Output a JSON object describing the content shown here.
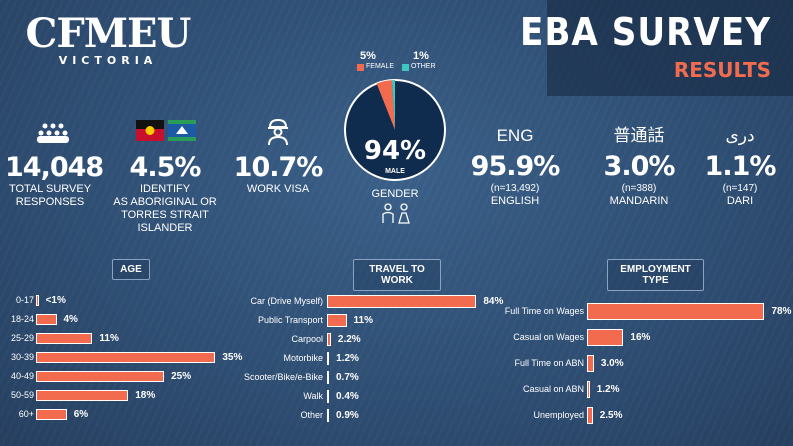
{
  "logo": {
    "main": "CFMEU",
    "sub": "VICTORIA"
  },
  "title": {
    "main": "EBA SURVEY",
    "sub": "RESULTS"
  },
  "colors": {
    "accent": "#f26b4f",
    "teal": "#3ec6c0",
    "navy": "#0f2b4d"
  },
  "stats": [
    {
      "value": "14,048",
      "label_line1": "TOTAL SURVEY",
      "label_line2": "RESPONSES",
      "icon": "people-crowd-icon"
    },
    {
      "value": "4.5%",
      "label_line1": "IDENTIFY",
      "label_line2": "AS ABORIGINAL OR",
      "label_line3": "TORRES STRAIT ISLANDER",
      "icon": "flags-icon"
    },
    {
      "value": "10.7%",
      "label_line1": "WORK VISA",
      "icon": "worker-icon"
    }
  ],
  "gender": {
    "female_pct": "5%",
    "female_label": "FEMALE",
    "other_pct": "1%",
    "other_label": "OTHER",
    "male_pct": "94%",
    "male_label": "MALE",
    "caption": "GENDER",
    "values": {
      "male": 94,
      "female": 5,
      "other": 1
    }
  },
  "languages": [
    {
      "script": "ENG",
      "value": "95.9%",
      "n": "(n=13,492)",
      "name": "ENGLISH"
    },
    {
      "script": "普通話",
      "value": "3.0%",
      "n": "(n=388)",
      "name": "MANDARIN"
    },
    {
      "script": "دری",
      "value": "1.1%",
      "n": "(n=147)",
      "name": "DARI"
    }
  ],
  "chart_data": [
    {
      "type": "bar",
      "title": "AGE",
      "categories": [
        "0-17",
        "18-24",
        "25-29",
        "30-39",
        "40-49",
        "50-59",
        "60+"
      ],
      "values": [
        0.5,
        4,
        11,
        35,
        25,
        18,
        6
      ],
      "labels": [
        "<1%",
        "4%",
        "11%",
        "35%",
        "25%",
        "18%",
        "6%"
      ],
      "xlim": [
        0,
        40
      ]
    },
    {
      "type": "bar",
      "title": "TRAVEL TO WORK",
      "categories": [
        "Car (Drive Myself)",
        "Public Transport",
        "Carpool",
        "Motorbike",
        "Scooter/Bike/e-Bike",
        "Walk",
        "Other"
      ],
      "values": [
        84,
        11,
        2.2,
        1.2,
        0.7,
        0.4,
        0.9
      ],
      "labels": [
        "84%",
        "11%",
        "2.2%",
        "1.2%",
        "0.7%",
        "0.4%",
        "0.9%"
      ],
      "xlim": [
        0,
        90
      ]
    },
    {
      "type": "bar",
      "title": "EMPLOYMENT TYPE",
      "categories": [
        "Full Time on Wages",
        "Casual on Wages",
        "Full Time on ABN",
        "Casual on ABN",
        "Unemployed"
      ],
      "values": [
        78,
        16,
        3.0,
        1.2,
        2.5
      ],
      "labels": [
        "78%",
        "16%",
        "3.0%",
        "1.2%",
        "2.5%"
      ],
      "xlim": [
        0,
        80
      ]
    }
  ]
}
